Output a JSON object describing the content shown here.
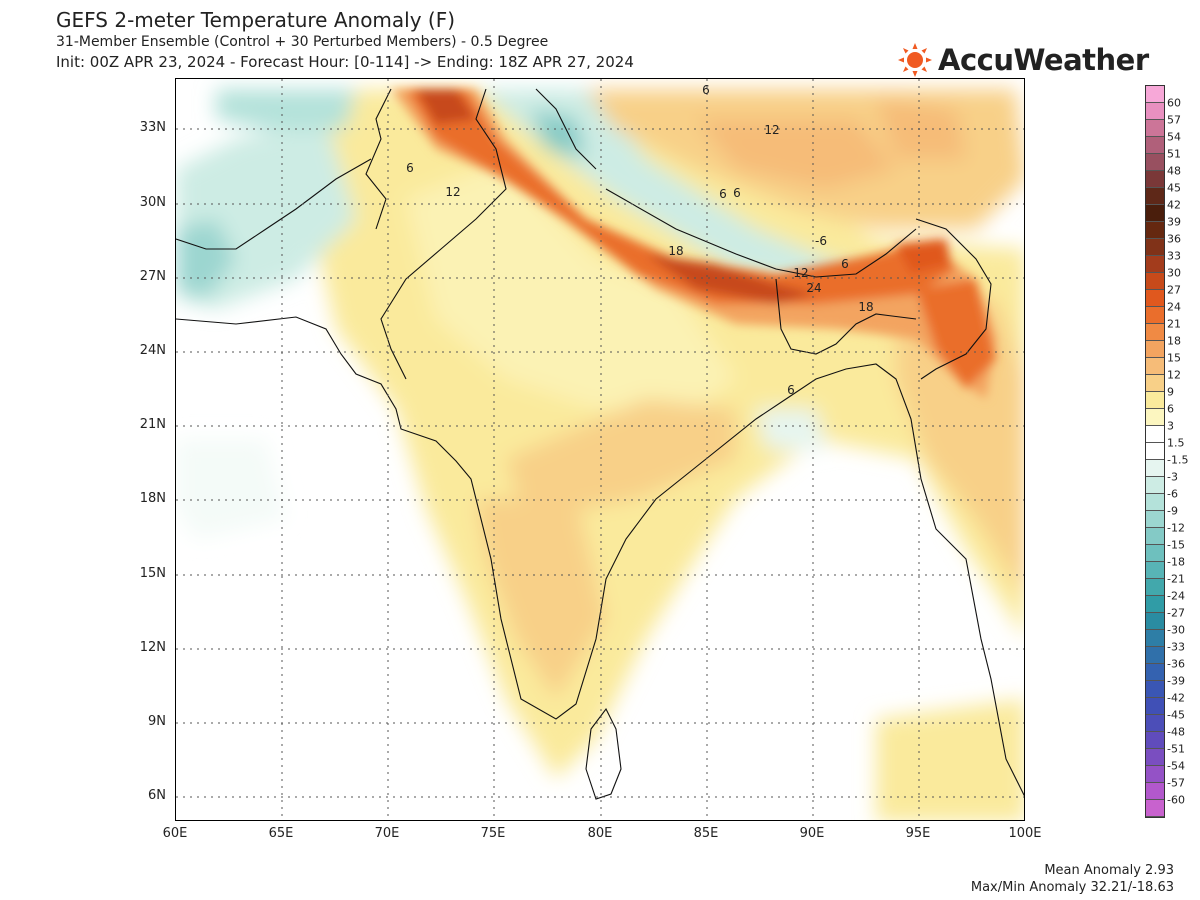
{
  "header": {
    "title": "GEFS 2-meter Temperature Anomaly (F)",
    "subtitle": "31-Member Ensemble (Control + 30 Perturbed Members) - 0.5 Degree",
    "init_line": "Init: 00Z APR 23, 2024 - Forecast Hour: [0-114] -> Ending: 18Z APR 27, 2024"
  },
  "logo": {
    "text": "AccuWeather",
    "icon": "sun-icon",
    "color": "#f05a22"
  },
  "map": {
    "lat_labels": [
      "33N",
      "30N",
      "27N",
      "24N",
      "21N",
      "18N",
      "15N",
      "12N",
      "9N",
      "6N"
    ],
    "lon_labels": [
      "60E",
      "65E",
      "70E",
      "75E",
      "80E",
      "85E",
      "90E",
      "95E",
      "100E"
    ],
    "contour_labels": [
      "6",
      "12",
      "6",
      "12",
      "6",
      "6",
      "-6",
      "6",
      "18",
      "12",
      "24",
      "18",
      "6"
    ]
  },
  "colorbar": {
    "levels": [
      "60",
      "57",
      "54",
      "51",
      "48",
      "45",
      "42",
      "39",
      "36",
      "33",
      "30",
      "27",
      "24",
      "21",
      "18",
      "15",
      "12",
      "9",
      "6",
      "3",
      "1.5",
      "-1.5",
      "-3",
      "-6",
      "-9",
      "-12",
      "-15",
      "-18",
      "-21",
      "-24",
      "-27",
      "-30",
      "-33",
      "-36",
      "-39",
      "-42",
      "-45",
      "-48",
      "-51",
      "-54",
      "-57",
      "-60"
    ],
    "colors": [
      "#f7a8d8",
      "#e890c0",
      "#cc7598",
      "#b0607a",
      "#985060",
      "#7a3838",
      "#5e2818",
      "#4a1e0c",
      "#652810",
      "#803218",
      "#a33c1c",
      "#c74a1a",
      "#e0581e",
      "#ea6e2c",
      "#f08a44",
      "#f3a460",
      "#f6bc78",
      "#f8d088",
      "#faea9c",
      "#fcf6c0",
      "#ffffff",
      "#ffffff",
      "#e6f5f0",
      "#cdece4",
      "#b4e2da",
      "#9cd6d0",
      "#84cac6",
      "#6ec0be",
      "#58b4b6",
      "#42a8ac",
      "#309ca6",
      "#2a8ca2",
      "#2e7ea6",
      "#3070aa",
      "#3462b0",
      "#3a56b4",
      "#4050b6",
      "#4c4eb8",
      "#604cbc",
      "#7a4ec0",
      "#9452c6",
      "#b258cc",
      "#c862ce"
    ]
  },
  "stats": {
    "mean_anomaly": "Mean Anomaly 2.93",
    "maxmin_anomaly": "Max/Min Anomaly 32.21/-18.63"
  }
}
